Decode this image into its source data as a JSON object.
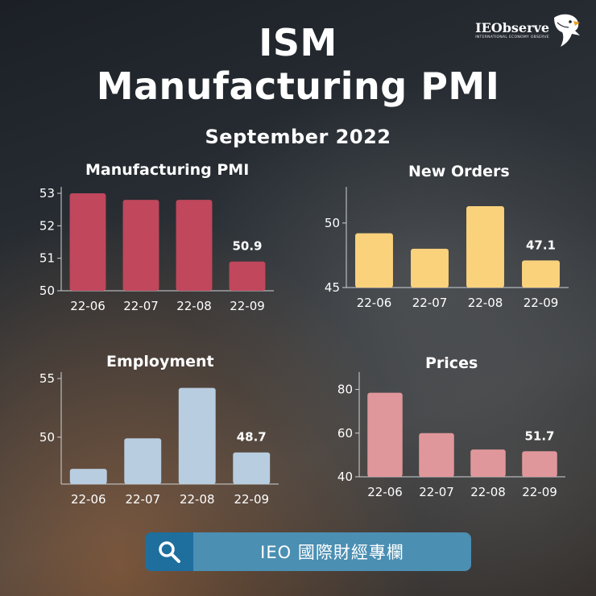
{
  "header": {
    "title_line1": "ISM",
    "title_line2": "Manufacturing PMI",
    "subtitle": "September 2022"
  },
  "logo": {
    "name": "IEObserve",
    "tagline": "INTERNATIONAL ECONOMY OBSERVE",
    "icon": "eagle-icon"
  },
  "search": {
    "icon": "search-icon",
    "label": "IEO 國際財經專欄"
  },
  "colors": {
    "pmi": "#c0475c",
    "new_orders": "#fbd27c",
    "employment": "#b8cde0",
    "prices": "#e0979b",
    "axis": "#cfd3d6",
    "text": "#ffffff"
  },
  "chart_data": [
    {
      "type": "bar",
      "title": "Manufacturing PMI",
      "categories": [
        "22-06",
        "22-07",
        "22-08",
        "22-09"
      ],
      "values": [
        53.0,
        52.8,
        52.8,
        50.9
      ],
      "ylim": [
        50,
        53
      ],
      "yticks": [
        50,
        51,
        52,
        53
      ],
      "data_labels": [
        "",
        "",
        "",
        "50.9"
      ],
      "xlabel": "",
      "ylabel": ""
    },
    {
      "type": "bar",
      "title": "New Orders",
      "categories": [
        "22-06",
        "22-07",
        "22-08",
        "22-09"
      ],
      "values": [
        49.2,
        48.0,
        51.3,
        47.1
      ],
      "ylim": [
        45,
        52.3
      ],
      "yticks": [
        45,
        50
      ],
      "data_labels": [
        "",
        "",
        "",
        "47.1"
      ],
      "xlabel": "",
      "ylabel": ""
    },
    {
      "type": "bar",
      "title": "Employment",
      "categories": [
        "22-06",
        "22-07",
        "22-08",
        "22-09"
      ],
      "values": [
        47.3,
        49.9,
        54.2,
        48.7
      ],
      "ylim": [
        46,
        55
      ],
      "yticks": [
        50,
        55
      ],
      "data_labels": [
        "",
        "",
        "",
        "48.7"
      ],
      "xlabel": "",
      "ylabel": ""
    },
    {
      "type": "bar",
      "title": "Prices",
      "categories": [
        "22-06",
        "22-07",
        "22-08",
        "22-09"
      ],
      "values": [
        78.5,
        60.0,
        52.5,
        51.7
      ],
      "ylim": [
        40,
        85
      ],
      "yticks": [
        40,
        60,
        80
      ],
      "data_labels": [
        "",
        "",
        "",
        "51.7"
      ],
      "xlabel": "",
      "ylabel": ""
    }
  ]
}
